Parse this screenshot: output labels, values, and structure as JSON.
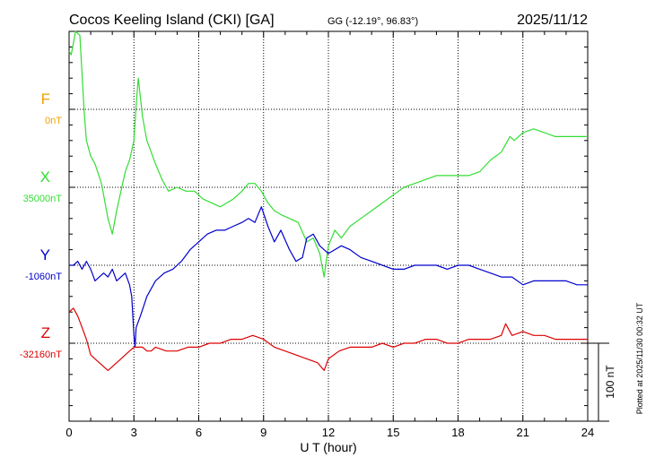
{
  "header": {
    "title": "Cocos Keeling Island (CKI)  [GA]",
    "coords": "GG (-12.19°,  96.83°)",
    "date": "2025/11/12"
  },
  "footer": {
    "plotted": "Plotted at 2025/11/30 00:32 UT"
  },
  "chart_data": {
    "type": "line",
    "title": "Cocos Keeling Island (CKI)  [GA]",
    "xlabel": "U T (hour)",
    "ylabel": "",
    "xlim": [
      0,
      24
    ],
    "xticks": [
      0,
      3,
      6,
      9,
      12,
      15,
      18,
      21,
      24
    ],
    "grid": true,
    "scale_bar": "100 nT",
    "scale_bar_nT": 100,
    "nT_per_division": 100,
    "series": [
      {
        "name": "F",
        "baseline": "0nT",
        "color": "#f0a000",
        "baseline_division": 1,
        "values": []
      },
      {
        "name": "X",
        "baseline": "35000nT",
        "color": "#33dd33",
        "baseline_division": 2,
        "values": [
          [
            0.0,
            175
          ],
          [
            0.1,
            170
          ],
          [
            0.3,
            205
          ],
          [
            0.5,
            195
          ],
          [
            0.7,
            95
          ],
          [
            0.8,
            60
          ],
          [
            1.0,
            40
          ],
          [
            1.2,
            30
          ],
          [
            1.5,
            5
          ],
          [
            1.8,
            -40
          ],
          [
            2.0,
            -60
          ],
          [
            2.2,
            -30
          ],
          [
            2.4,
            -5
          ],
          [
            2.6,
            20
          ],
          [
            2.8,
            35
          ],
          [
            3.0,
            60
          ],
          [
            3.1,
            105
          ],
          [
            3.2,
            140
          ],
          [
            3.4,
            90
          ],
          [
            3.6,
            60
          ],
          [
            3.8,
            45
          ],
          [
            4.0,
            30
          ],
          [
            4.3,
            10
          ],
          [
            4.6,
            -5
          ],
          [
            5.0,
            0
          ],
          [
            5.4,
            -5
          ],
          [
            5.8,
            -5
          ],
          [
            6.2,
            -15
          ],
          [
            6.6,
            -20
          ],
          [
            7.0,
            -25
          ],
          [
            7.3,
            -20
          ],
          [
            7.6,
            -15
          ],
          [
            8.0,
            -5
          ],
          [
            8.3,
            5
          ],
          [
            8.6,
            5
          ],
          [
            8.9,
            -5
          ],
          [
            9.2,
            -20
          ],
          [
            9.5,
            -30
          ],
          [
            9.8,
            -35
          ],
          [
            10.2,
            -40
          ],
          [
            10.6,
            -45
          ],
          [
            11.0,
            -70
          ],
          [
            11.3,
            -65
          ],
          [
            11.6,
            -85
          ],
          [
            11.8,
            -115
          ],
          [
            12.0,
            -75
          ],
          [
            12.3,
            -55
          ],
          [
            12.6,
            -65
          ],
          [
            13.0,
            -50
          ],
          [
            13.5,
            -40
          ],
          [
            14.0,
            -30
          ],
          [
            14.5,
            -20
          ],
          [
            15.0,
            -10
          ],
          [
            15.5,
            0
          ],
          [
            16.0,
            5
          ],
          [
            16.5,
            10
          ],
          [
            17.0,
            15
          ],
          [
            17.5,
            15
          ],
          [
            18.0,
            15
          ],
          [
            18.5,
            15
          ],
          [
            19.0,
            20
          ],
          [
            19.5,
            35
          ],
          [
            20.0,
            45
          ],
          [
            20.2,
            55
          ],
          [
            20.4,
            65
          ],
          [
            20.6,
            60
          ],
          [
            21.0,
            70
          ],
          [
            21.5,
            75
          ],
          [
            22.0,
            70
          ],
          [
            22.5,
            65
          ],
          [
            23.0,
            65
          ],
          [
            23.5,
            65
          ],
          [
            24.0,
            65
          ]
        ]
      },
      {
        "name": "Y",
        "baseline": "-1060nT",
        "color": "#0000cc",
        "baseline_division": 3,
        "values": [
          [
            0.0,
            0
          ],
          [
            0.2,
            0
          ],
          [
            0.4,
            5
          ],
          [
            0.6,
            -5
          ],
          [
            0.8,
            5
          ],
          [
            1.0,
            -5
          ],
          [
            1.2,
            -20
          ],
          [
            1.4,
            -15
          ],
          [
            1.6,
            -10
          ],
          [
            1.8,
            -15
          ],
          [
            2.0,
            -5
          ],
          [
            2.2,
            -20
          ],
          [
            2.4,
            -15
          ],
          [
            2.6,
            -10
          ],
          [
            2.8,
            -25
          ],
          [
            2.9,
            -40
          ],
          [
            3.0,
            -90
          ],
          [
            3.05,
            -105
          ],
          [
            3.1,
            -80
          ],
          [
            3.3,
            -65
          ],
          [
            3.6,
            -40
          ],
          [
            4.0,
            -20
          ],
          [
            4.4,
            -10
          ],
          [
            4.8,
            -5
          ],
          [
            5.2,
            5
          ],
          [
            5.6,
            20
          ],
          [
            6.0,
            30
          ],
          [
            6.4,
            40
          ],
          [
            6.8,
            45
          ],
          [
            7.2,
            45
          ],
          [
            7.6,
            50
          ],
          [
            8.0,
            55
          ],
          [
            8.3,
            60
          ],
          [
            8.6,
            55
          ],
          [
            8.9,
            75
          ],
          [
            9.2,
            50
          ],
          [
            9.5,
            30
          ],
          [
            9.8,
            45
          ],
          [
            10.2,
            20
          ],
          [
            10.5,
            5
          ],
          [
            10.8,
            10
          ],
          [
            11.0,
            35
          ],
          [
            11.3,
            40
          ],
          [
            11.6,
            25
          ],
          [
            12.0,
            15
          ],
          [
            12.3,
            20
          ],
          [
            12.6,
            25
          ],
          [
            13.0,
            20
          ],
          [
            13.5,
            10
          ],
          [
            14.0,
            5
          ],
          [
            14.5,
            0
          ],
          [
            15.0,
            -5
          ],
          [
            15.5,
            -5
          ],
          [
            16.0,
            0
          ],
          [
            16.5,
            0
          ],
          [
            17.0,
            0
          ],
          [
            17.5,
            -5
          ],
          [
            18.0,
            0
          ],
          [
            18.5,
            0
          ],
          [
            19.0,
            -5
          ],
          [
            19.5,
            -10
          ],
          [
            20.0,
            -15
          ],
          [
            20.5,
            -15
          ],
          [
            21.0,
            -25
          ],
          [
            21.5,
            -20
          ],
          [
            22.0,
            -20
          ],
          [
            22.5,
            -20
          ],
          [
            23.0,
            -20
          ],
          [
            23.5,
            -25
          ],
          [
            24.0,
            -25
          ]
        ]
      },
      {
        "name": "Z",
        "baseline": "-32160nT",
        "color": "#dd0000",
        "baseline_division": 4,
        "values": [
          [
            0.0,
            40
          ],
          [
            0.2,
            45
          ],
          [
            0.4,
            35
          ],
          [
            0.6,
            20
          ],
          [
            0.8,
            5
          ],
          [
            1.0,
            -15
          ],
          [
            1.2,
            -20
          ],
          [
            1.4,
            -25
          ],
          [
            1.6,
            -30
          ],
          [
            1.8,
            -35
          ],
          [
            2.0,
            -30
          ],
          [
            2.2,
            -25
          ],
          [
            2.4,
            -20
          ],
          [
            2.6,
            -15
          ],
          [
            2.8,
            -10
          ],
          [
            3.0,
            -5
          ],
          [
            3.2,
            -5
          ],
          [
            3.4,
            -5
          ],
          [
            3.6,
            -10
          ],
          [
            3.8,
            -10
          ],
          [
            4.0,
            -5
          ],
          [
            4.5,
            -10
          ],
          [
            5.0,
            -10
          ],
          [
            5.5,
            -5
          ],
          [
            6.0,
            -5
          ],
          [
            6.5,
            0
          ],
          [
            7.0,
            0
          ],
          [
            7.5,
            5
          ],
          [
            8.0,
            5
          ],
          [
            8.5,
            10
          ],
          [
            9.0,
            5
          ],
          [
            9.5,
            -5
          ],
          [
            10.0,
            -10
          ],
          [
            10.5,
            -15
          ],
          [
            11.0,
            -20
          ],
          [
            11.5,
            -25
          ],
          [
            11.8,
            -35
          ],
          [
            12.0,
            -20
          ],
          [
            12.5,
            -10
          ],
          [
            13.0,
            -5
          ],
          [
            13.5,
            -5
          ],
          [
            14.0,
            -5
          ],
          [
            14.5,
            0
          ],
          [
            15.0,
            -5
          ],
          [
            15.5,
            0
          ],
          [
            16.0,
            0
          ],
          [
            16.5,
            5
          ],
          [
            17.0,
            5
          ],
          [
            17.5,
            0
          ],
          [
            18.0,
            0
          ],
          [
            18.5,
            5
          ],
          [
            19.0,
            5
          ],
          [
            19.5,
            5
          ],
          [
            20.0,
            10
          ],
          [
            20.2,
            25
          ],
          [
            20.5,
            10
          ],
          [
            21.0,
            15
          ],
          [
            21.5,
            10
          ],
          [
            22.0,
            10
          ],
          [
            22.5,
            5
          ],
          [
            23.0,
            5
          ],
          [
            23.5,
            5
          ],
          [
            24.0,
            5
          ]
        ]
      }
    ]
  }
}
